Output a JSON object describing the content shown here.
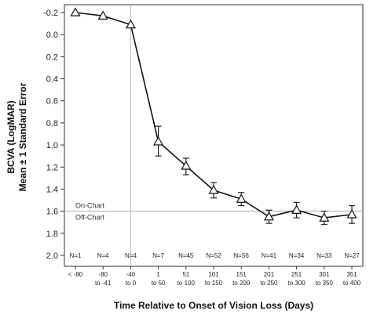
{
  "chart_data": {
    "type": "line",
    "xlabel": "Time Relative to Onset of Vision Loss (Days)",
    "ylabel_line1": "BCVA (LogMAR)",
    "ylabel_line2": "Mean ± 1 Standard Error",
    "ylim": [
      -0.2,
      2.0
    ],
    "y_reversed": true,
    "yticks": [
      "-0.2",
      "0.0",
      "0.2",
      "0.4",
      "0.6",
      "0.8",
      "1.0",
      "1.2",
      "1.4",
      "1.6",
      "1.8",
      "2.0"
    ],
    "categories": [
      [
        "< -80"
      ],
      [
        "-80",
        "to -41"
      ],
      [
        "-40",
        "to 0"
      ],
      [
        "1",
        "to 50"
      ],
      [
        "51",
        "to 100"
      ],
      [
        "101",
        "to 150"
      ],
      [
        "151",
        "to 200"
      ],
      [
        "201",
        "to 250"
      ],
      [
        "251",
        "to 300"
      ],
      [
        "301",
        "to 350"
      ],
      [
        "351",
        "to 400"
      ]
    ],
    "n_labels": [
      "N=1",
      "N=4",
      "N=4",
      "N=7",
      "N=45",
      "N=52",
      "N=56",
      "N=41",
      "N=34",
      "N=33",
      "N=27"
    ],
    "series": [
      {
        "values": [
          -0.2,
          -0.17,
          -0.09,
          0.97,
          1.19,
          1.41,
          1.49,
          1.65,
          1.59,
          1.66,
          1.63
        ],
        "lower": [
          -0.2,
          -0.17,
          -0.09,
          0.83,
          1.12,
          1.34,
          1.43,
          1.59,
          1.52,
          1.6,
          1.55
        ],
        "upper": [
          -0.2,
          -0.17,
          -0.09,
          1.1,
          1.27,
          1.48,
          1.55,
          1.71,
          1.66,
          1.72,
          1.71
        ]
      }
    ],
    "reference_line": {
      "y": 1.6,
      "label_above": "On-Chart",
      "label_below": "Off-Chart"
    },
    "onset_marker_x": "-40 to 0",
    "marker": "triangle-open",
    "grid": false
  }
}
